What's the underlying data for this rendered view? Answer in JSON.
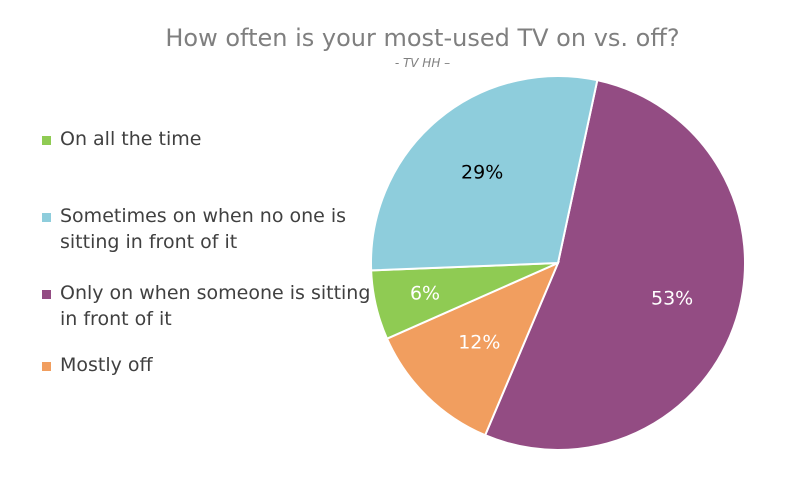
{
  "chart_data": {
    "type": "pie",
    "title": "How often is your most-used TV on vs. off?",
    "subtitle": "- TV HH –",
    "legend_position": "left",
    "slices": [
      {
        "label": "Only on when someone is sitting in front of it",
        "value": 53,
        "display": "53%",
        "color": "#934c83",
        "label_color": "#ffffff"
      },
      {
        "label": "Mostly off",
        "value": 12,
        "display": "12%",
        "color": "#f19e5f",
        "label_color": "#ffffff"
      },
      {
        "label": "On all the time",
        "value": 6,
        "display": "6%",
        "color": "#8fcb53",
        "label_color": "#ffffff"
      },
      {
        "label": "Sometimes on when no one is sitting in front of it",
        "value": 29,
        "display": "29%",
        "color": "#8ecddc",
        "label_color": "#000000"
      }
    ],
    "legend": [
      {
        "label": "On all the time",
        "color": "#8fcb53"
      },
      {
        "label": "Sometimes on when no one is sitting in front of it",
        "color": "#8ecddc"
      },
      {
        "label": "Only on when someone is sitting in front of it",
        "color": "#934c83"
      },
      {
        "label": "Mostly off",
        "color": "#f19e5f"
      }
    ]
  }
}
